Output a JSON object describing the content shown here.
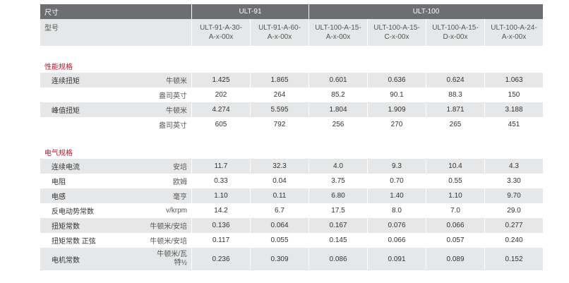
{
  "header": {
    "size_label": "尺寸",
    "model_label": "型号",
    "groups": [
      "ULT-91",
      "ULT-100"
    ],
    "models": [
      [
        "ULT-91-A-30-",
        "A-x-00x"
      ],
      [
        "ULT-91-A-60-",
        "A-x-00x"
      ],
      [
        "ULT-100-A-15-",
        "A-x-00x"
      ],
      [
        "ULT-100-A-15-",
        "C-x-00x"
      ],
      [
        "ULT-100-A-15-",
        "D-x-00x"
      ],
      [
        "ULT-100-A-24-",
        "A-x-00x"
      ]
    ]
  },
  "performance": {
    "title": "性能规格",
    "rows": [
      {
        "name": "连续扭矩",
        "unit": "牛顿米",
        "values": [
          "1.425",
          "1.865",
          "0.601",
          "0.636",
          "0.624",
          "1.063"
        ]
      },
      {
        "name": "",
        "unit": "盎司英寸",
        "values": [
          "202",
          "264",
          "85.2",
          "90.1",
          "88.3",
          "150"
        ]
      },
      {
        "name": "峰值扭矩",
        "unit": "牛顿米",
        "values": [
          "4.274",
          "5.595",
          "1.804",
          "1.909",
          "1.871",
          "3.188"
        ]
      },
      {
        "name": "",
        "unit": "盎司英寸",
        "values": [
          "605",
          "792",
          "256",
          "270",
          "265",
          "451"
        ]
      }
    ]
  },
  "electrical": {
    "title": "电气规格",
    "rows": [
      {
        "name": "连续电流",
        "unit": "安培",
        "values": [
          "11.7",
          "32.3",
          "4.0",
          "9.3",
          "10.4",
          "4.3"
        ]
      },
      {
        "name": "电阻",
        "unit": "欧姆",
        "values": [
          "0.33",
          "0.04",
          "3.75",
          "0.70",
          "0.55",
          "3.30"
        ]
      },
      {
        "name": "电感",
        "unit": "毫亨",
        "values": [
          "1.10",
          "0.11",
          "6.80",
          "1.40",
          "1.10",
          "9.70"
        ]
      },
      {
        "name": "反电动势常数",
        "unit": "v/krpm",
        "values": [
          "14.2",
          "6.7",
          "17.5",
          "8.0",
          "7.0",
          "29.0"
        ]
      },
      {
        "name": "扭矩常数",
        "unit": "牛顿米/安培",
        "values": [
          "0.136",
          "0.064",
          "0.167",
          "0.076",
          "0.066",
          "0.277"
        ]
      },
      {
        "name": "扭矩常数 正弦",
        "unit": "牛顿米/安培",
        "values": [
          "0.117",
          "0.055",
          "0.145",
          "0.066",
          "0.057",
          "0.240"
        ]
      },
      {
        "name": "电机常数",
        "unit_line1": "牛顿米/瓦",
        "unit_line2": "特½",
        "values": [
          "0.236",
          "0.309",
          "0.086",
          "0.091",
          "0.089",
          "0.152"
        ]
      }
    ]
  }
}
